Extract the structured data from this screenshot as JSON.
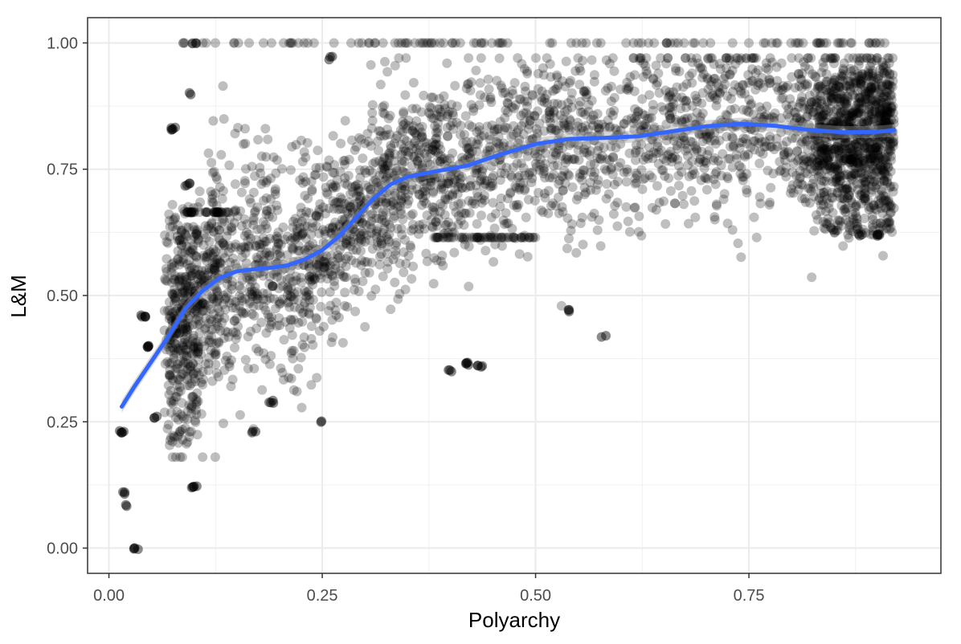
{
  "chart_data": {
    "type": "scatter",
    "xlabel": "Polyarchy",
    "ylabel": "L&M",
    "xlim": [
      -0.025,
      0.975
    ],
    "ylim": [
      -0.05,
      1.05
    ],
    "x_ticks": [
      0.0,
      0.25,
      0.5,
      0.75
    ],
    "x_tick_labels": [
      "0.00",
      "0.25",
      "0.50",
      "0.75"
    ],
    "y_ticks": [
      0.0,
      0.25,
      0.5,
      0.75,
      1.0
    ],
    "y_tick_labels": [
      "0.00",
      "0.25",
      "0.50",
      "0.75",
      "1.00"
    ],
    "x_minor_ticks": [
      0.125,
      0.375,
      0.625,
      0.875
    ],
    "y_minor_ticks": [
      0.125,
      0.375,
      0.625,
      0.875
    ],
    "grid": true,
    "legend": "none",
    "point_color": "#000000",
    "point_alpha": 0.25,
    "smooth_color": "#3366FF",
    "smooth_band_color": "#999999",
    "smooth_x": [
      0.015,
      0.03,
      0.05,
      0.07,
      0.09,
      0.11,
      0.13,
      0.15,
      0.17,
      0.19,
      0.21,
      0.23,
      0.25,
      0.27,
      0.29,
      0.31,
      0.33,
      0.35,
      0.38,
      0.42,
      0.46,
      0.5,
      0.54,
      0.58,
      0.62,
      0.66,
      0.7,
      0.74,
      0.78,
      0.82,
      0.86,
      0.9,
      0.92
    ],
    "smooth_y": [
      0.28,
      0.32,
      0.37,
      0.42,
      0.475,
      0.51,
      0.535,
      0.548,
      0.552,
      0.555,
      0.56,
      0.572,
      0.59,
      0.618,
      0.655,
      0.692,
      0.72,
      0.735,
      0.745,
      0.757,
      0.78,
      0.8,
      0.81,
      0.812,
      0.815,
      0.825,
      0.835,
      0.84,
      0.836,
      0.828,
      0.823,
      0.824,
      0.827
    ],
    "point_clusters": [
      {
        "x": 0.015,
        "y": 0.23
      },
      {
        "x": 0.016,
        "y": 0.11
      },
      {
        "x": 0.018,
        "y": 0.085
      },
      {
        "x": 0.032,
        "y": 0.0
      },
      {
        "x": 0.04,
        "y": 0.46
      },
      {
        "x": 0.045,
        "y": 0.4
      },
      {
        "x": 0.055,
        "y": 0.26
      },
      {
        "x": 0.075,
        "y": 0.83
      },
      {
        "x": 0.092,
        "y": 0.72
      },
      {
        "x": 0.1,
        "y": 1.0
      },
      {
        "x": 0.095,
        "y": 0.9
      },
      {
        "x": 0.1,
        "y": 0.12
      },
      {
        "x": 0.17,
        "y": 0.23
      },
      {
        "x": 0.19,
        "y": 0.29
      },
      {
        "x": 0.25,
        "y": 0.25
      },
      {
        "x": 0.26,
        "y": 0.97
      },
      {
        "x": 0.4,
        "y": 0.35
      },
      {
        "x": 0.42,
        "y": 0.365
      },
      {
        "x": 0.435,
        "y": 0.36
      },
      {
        "x": 0.54,
        "y": 0.47
      },
      {
        "x": 0.58,
        "y": 0.42
      },
      {
        "x": 0.88,
        "y": 0.62
      },
      {
        "x": 0.9,
        "y": 0.62
      },
      {
        "x": 0.87,
        "y": 0.77
      }
    ]
  }
}
